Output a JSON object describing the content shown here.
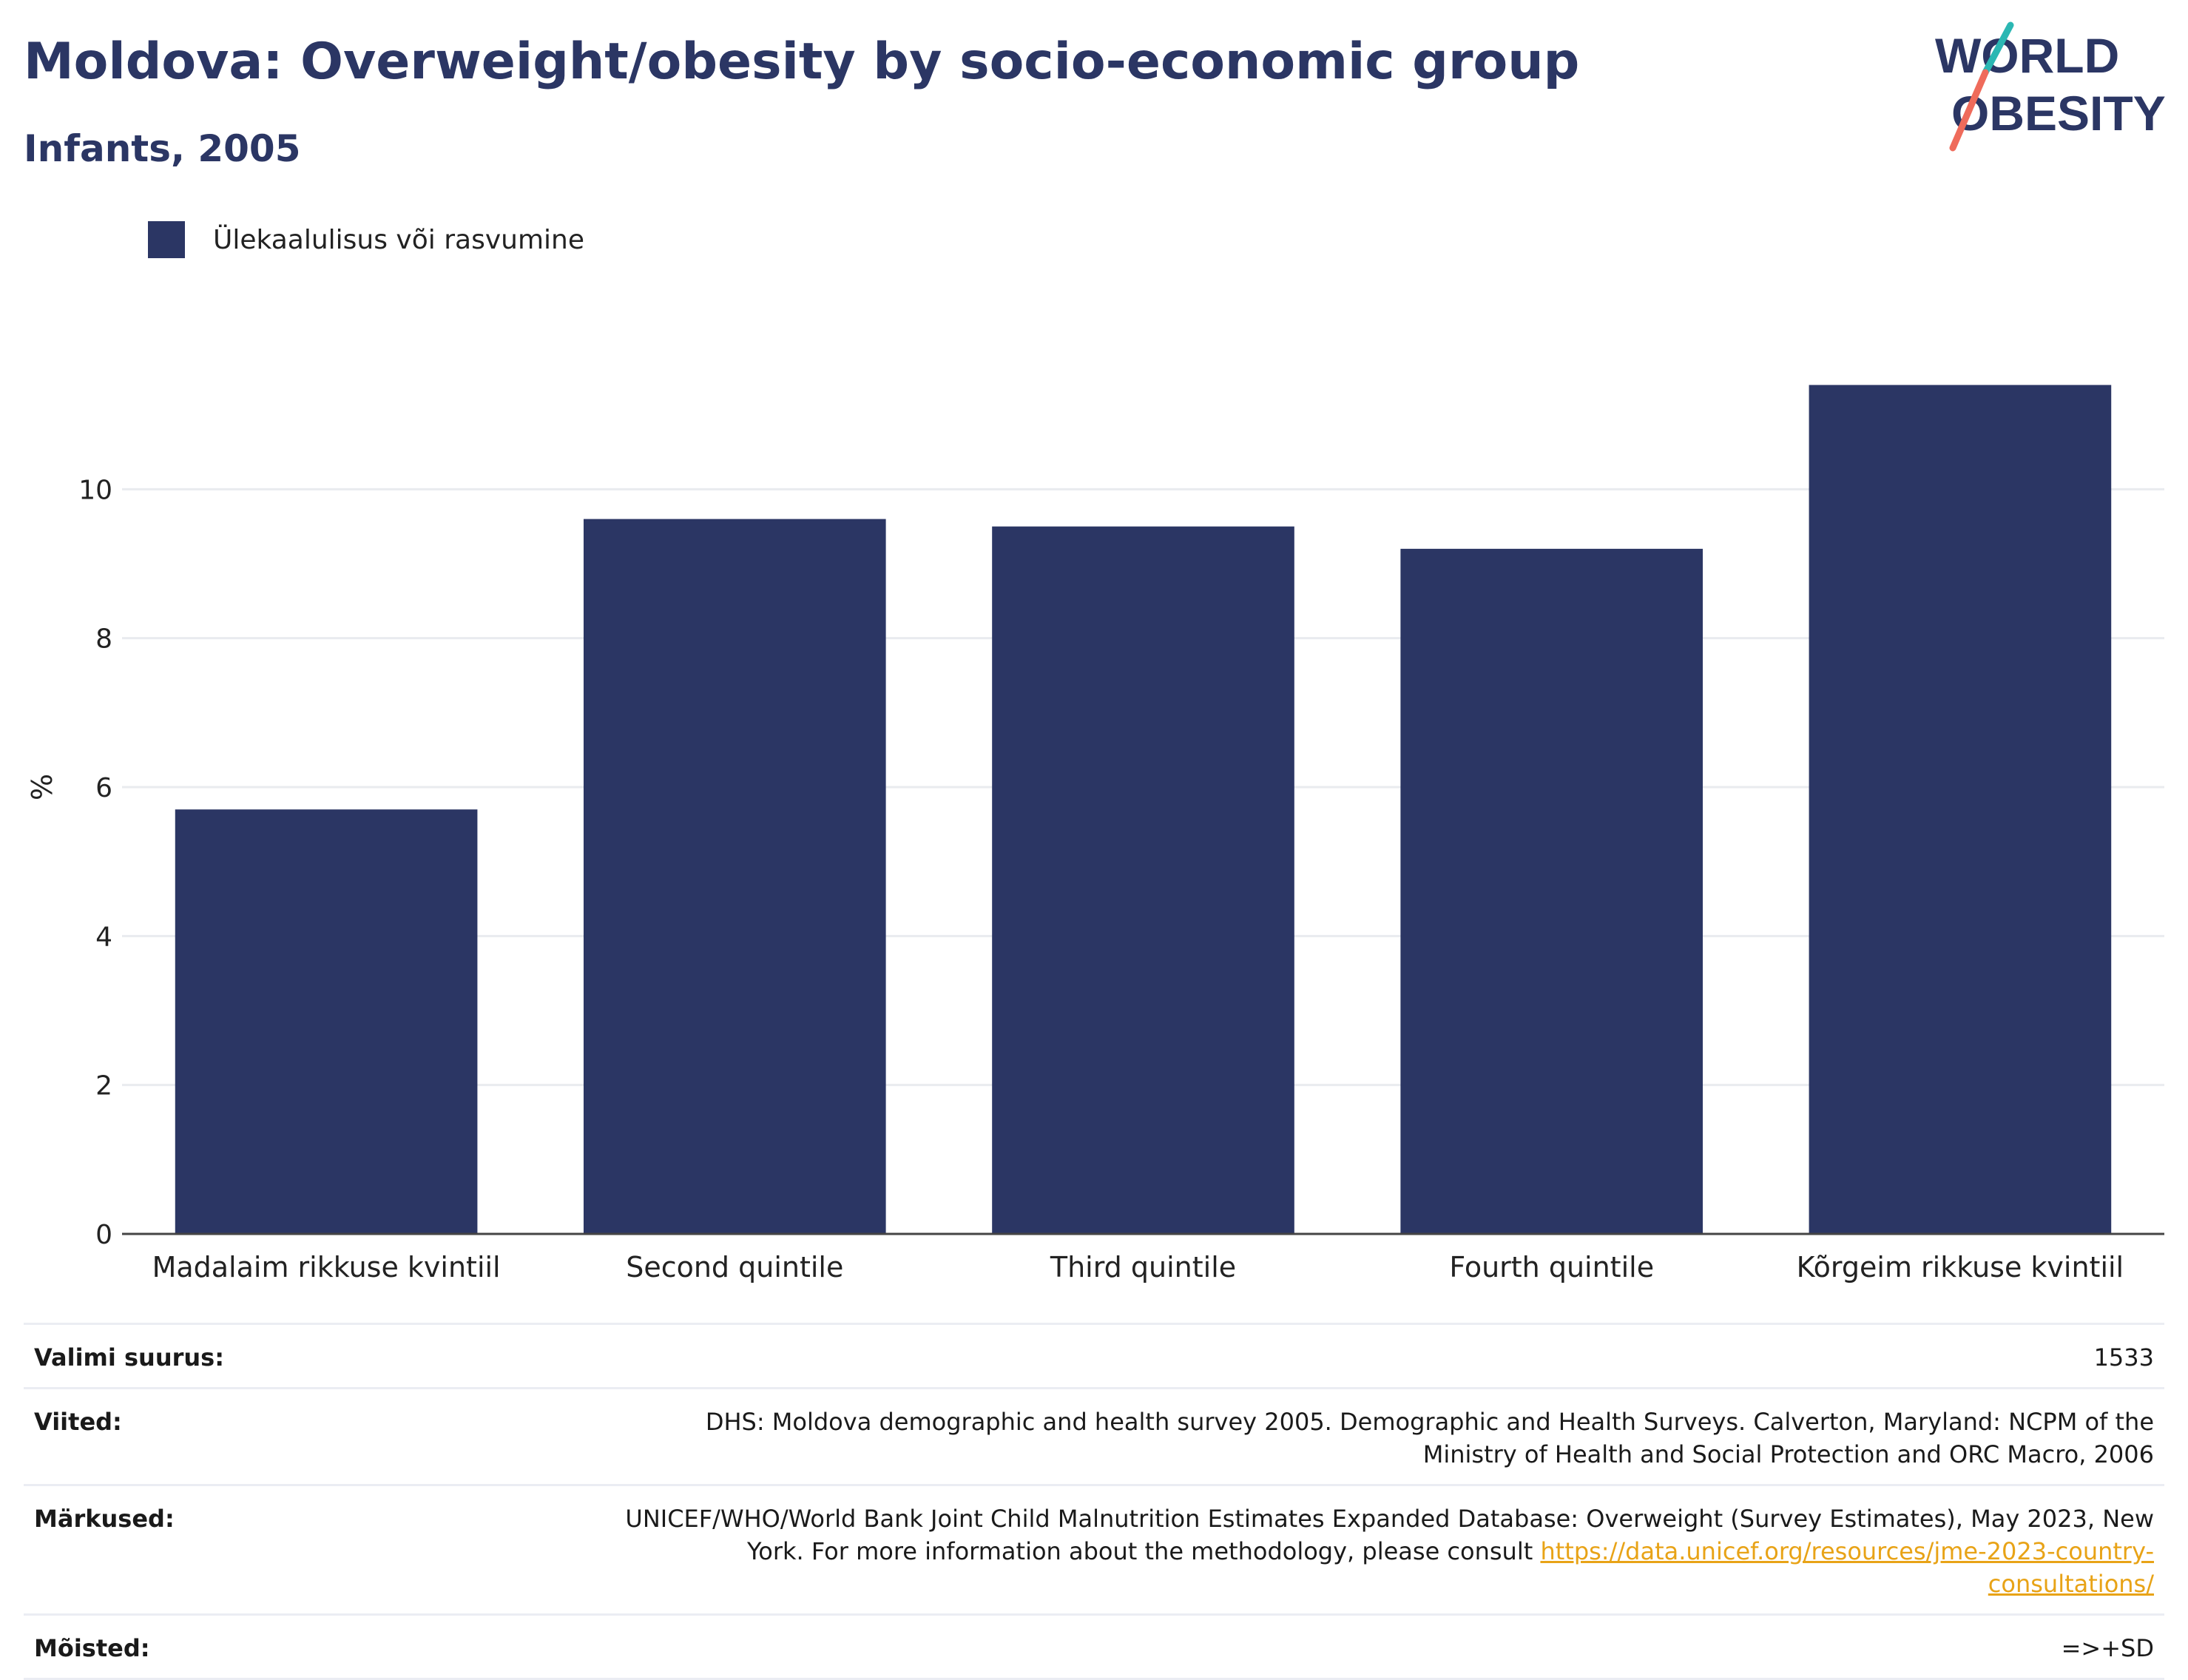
{
  "header": {
    "title": "Moldova: Overweight/obesity by socio-economic group",
    "subtitle": "Infants, 2005"
  },
  "logo": {
    "line1": "WORLD",
    "line2": "OBESITY"
  },
  "colors": {
    "bar": "#2b3664",
    "title": "#2b3664",
    "link": "#e8a317",
    "logo_teal": "#2bb7b3",
    "logo_coral": "#ef6b5b"
  },
  "chart_data": {
    "type": "bar",
    "categories": [
      "Madalaim rikkuse kvintiil",
      "Second quintile",
      "Third quintile",
      "Fourth quintile",
      "Kõrgeim rikkuse kvintiil"
    ],
    "series": [
      {
        "name": "Ülekaalulisus või rasvumine",
        "values": [
          5.7,
          9.6,
          9.5,
          9.2,
          11.4
        ]
      }
    ],
    "ylabel": "%",
    "ylim": [
      0,
      12
    ],
    "yticks": [
      0,
      2,
      4,
      6,
      8,
      10
    ],
    "grid": true,
    "legend_position": "top-left"
  },
  "footer": {
    "rows": [
      {
        "label": "Valimi suurus:",
        "value": "1533"
      },
      {
        "label": "Viited:",
        "value": "DHS: Moldova demographic and health survey 2005. Demographic and Health Surveys. Calverton, Maryland: NCPM of the Ministry of Health and Social Protection and ORC Macro, 2006"
      },
      {
        "label": "Märkused:",
        "value": "UNICEF/WHO/World Bank Joint Child Malnutrition Estimates Expanded Database: Overweight (Survey Estimates), May 2023, New York. For more information about the methodology, please consult ",
        "link": "https://data.unicef.org/resources/jme-2023-country-consultations/"
      },
      {
        "label": "Mõisted:",
        "value": "=>+SD"
      }
    ]
  }
}
